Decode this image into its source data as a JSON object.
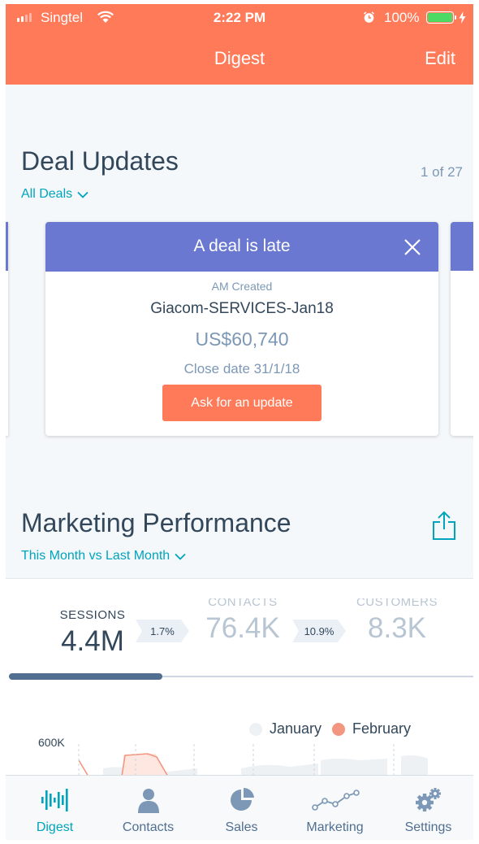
{
  "status_bar": {
    "carrier": "Singtel",
    "time": "2:22 PM",
    "battery_percent": "100%",
    "battery_level": 1.0
  },
  "nav": {
    "title": "Digest",
    "edit_label": "Edit"
  },
  "deal_updates": {
    "title": "Deal Updates",
    "counter": "1 of 27",
    "filter_label": "All Deals",
    "card": {
      "header": "A deal is late",
      "owner_action": "AM Created",
      "deal_name": "Giacom-SERVICES-Jan18",
      "amount": "US$60,740",
      "close_date": "Close date 31/1/18",
      "cta_label": "Ask for an update"
    }
  },
  "marketing": {
    "title": "Marketing Performance",
    "filter_label": "This Month vs Last Month",
    "metrics": [
      {
        "label": "SESSIONS",
        "value": "4.4M"
      },
      {
        "label": "CONTACTS",
        "value": "76.4K"
      },
      {
        "label": "CUSTOMERS",
        "value": "8.3K"
      }
    ],
    "changes": [
      "1.7%",
      "10.9%"
    ],
    "carousel_progress": 0.33,
    "legend": {
      "january": "January",
      "february": "February"
    },
    "y_tick": "600K",
    "colors": {
      "january": "#eef1f4",
      "february": "#f2967f"
    }
  },
  "tabbar": {
    "items": [
      {
        "label": "Digest",
        "icon": "digest-waveform-icon"
      },
      {
        "label": "Contacts",
        "icon": "person-icon"
      },
      {
        "label": "Sales",
        "icon": "pie-chart-icon"
      },
      {
        "label": "Marketing",
        "icon": "line-graph-icon"
      },
      {
        "label": "Settings",
        "icon": "gears-icon"
      }
    ]
  },
  "colors": {
    "brand_orange": "#ff7a59",
    "card_header": "#6a78d1",
    "teal": "#00a4bd",
    "text_dark": "#33475b",
    "text_muted": "#7c98b6"
  }
}
